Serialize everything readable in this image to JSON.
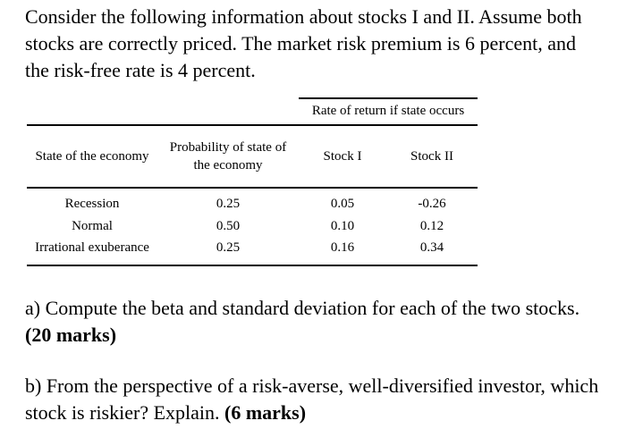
{
  "intro": "Consider the following information about stocks I and II. Assume both stocks are correctly priced. The market risk premium is 6 percent, and the risk-free rate is 4 percent.",
  "table": {
    "span_header": "Rate of return if state occurs",
    "columns": [
      "State of the economy",
      "Probability of state of the economy",
      "Stock I",
      "Stock II"
    ],
    "rows": [
      {
        "state": "Recession",
        "probability": "0.25",
        "stock1": "0.05",
        "stock2": "-0.26"
      },
      {
        "state": "Normal",
        "probability": "0.50",
        "stock1": "0.10",
        "stock2": "0.12"
      },
      {
        "state": "Irrational exuberance",
        "probability": "0.25",
        "stock1": "0.16",
        "stock2": "0.34"
      }
    ]
  },
  "question_a": {
    "text": "a) Compute the beta and standard deviation for each of the two stocks.",
    "marks": "(20 marks)"
  },
  "question_b": {
    "text": "b) From the perspective of a risk-averse, well-diversified investor, which stock is riskier? Explain.",
    "marks": "(6 marks)"
  }
}
